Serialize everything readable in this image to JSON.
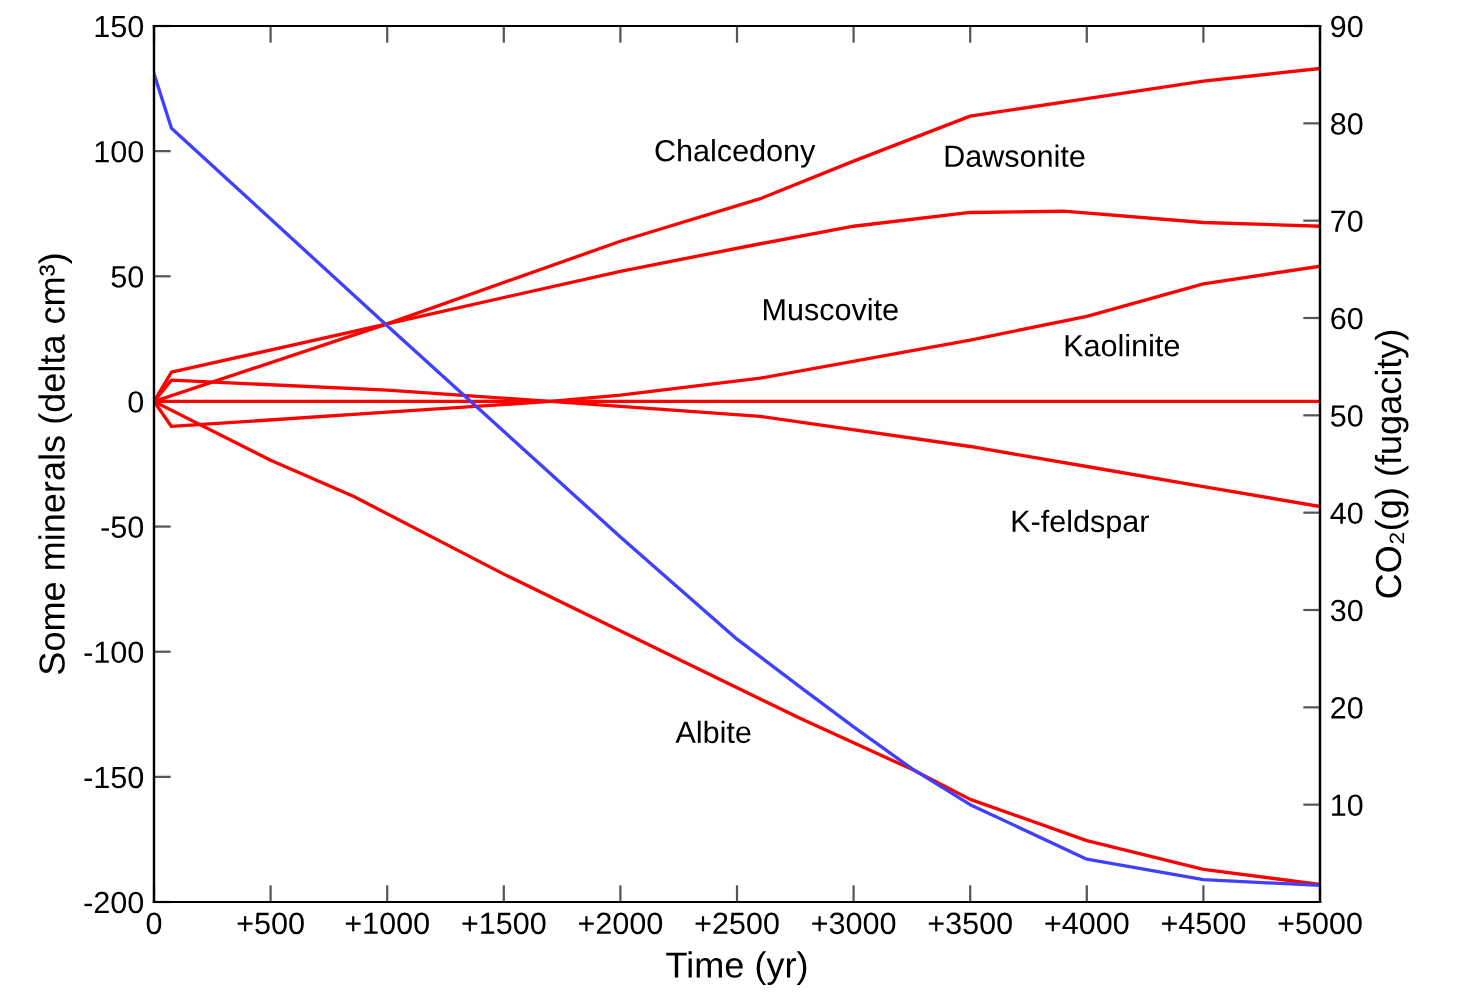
{
  "chart_data": {
    "type": "line",
    "xlabel": "Time (yr)",
    "ylabel": "Some minerals (delta cm³)",
    "y2label": "CO₂(g) (fugacity)",
    "xlim": [
      0,
      5000
    ],
    "xticks": [
      0,
      {
        "value": 500,
        "label": "+500"
      },
      {
        "value": 1000,
        "label": "+1000"
      },
      {
        "value": 1500,
        "label": "+1500"
      },
      {
        "value": 2000,
        "label": "+2000"
      },
      {
        "value": 2500,
        "label": "+2500"
      },
      {
        "value": 3000,
        "label": "+3000"
      },
      {
        "value": 3500,
        "label": "+3500"
      },
      {
        "value": 4000,
        "label": "+4000"
      },
      {
        "value": 4500,
        "label": "+4500"
      },
      {
        "value": 5000,
        "label": "+5000"
      }
    ],
    "ylim": [
      -200,
      150
    ],
    "yticks": [
      -200,
      -150,
      -100,
      -50,
      0,
      50,
      100,
      150
    ],
    "y2lim": [
      0,
      90
    ],
    "y2ticks": [
      10,
      20,
      30,
      40,
      50,
      60,
      70,
      80,
      90
    ],
    "grid": false,
    "line_style": "solid",
    "marker": "none",
    "series": [
      {
        "color": "#ff0000",
        "x": [
          0,
          1000,
          2000,
          2600,
          3000,
          3500,
          4000,
          4500,
          5000
        ],
        "values": [
          0,
          31,
          64,
          81,
          96,
          114,
          121,
          128,
          133
        ]
      },
      {
        "color": "#ff0000",
        "x": [
          0,
          75,
          1000,
          2000,
          2600,
          3000,
          3500,
          3900,
          4500,
          5000
        ],
        "values": [
          0,
          11.7,
          31,
          52,
          63,
          70,
          75.5,
          76,
          71.5,
          70
        ]
      },
      {
        "color": "#ff0000",
        "x": [
          0,
          75,
          1000,
          1700,
          2000,
          2600,
          3500,
          4000,
          4500,
          5000
        ],
        "values": [
          0,
          -10,
          -4.3,
          0,
          2.5,
          9.3,
          24.5,
          34,
          47,
          54
        ]
      },
      {
        "color": "#ff0000",
        "x": [
          0,
          5000
        ],
        "values": [
          0,
          0
        ]
      },
      {
        "color": "#ff0000",
        "x": [
          0,
          75,
          1000,
          1700,
          2600,
          3500,
          4000,
          4500,
          5000
        ],
        "values": [
          0,
          8.5,
          4.5,
          0,
          -6,
          -18,
          -26,
          -34,
          -42
        ]
      },
      {
        "color": "#ff0000",
        "x": [
          0,
          500,
          857,
          1500,
          2770,
          3250,
          3500,
          4000,
          4500,
          5000
        ],
        "values": [
          0,
          -23.5,
          -38,
          -69,
          -126.6,
          -147,
          -159,
          -175.5,
          -187,
          -193
        ]
      },
      {
        "color": "#4040ff",
        "axis": "y2",
        "x": [
          0,
          75,
          1000,
          2000,
          2500,
          2770,
          3000,
          3250,
          3500,
          4000,
          4500,
          5000
        ],
        "values": [
          85.1,
          79.5,
          59.2,
          37.5,
          27,
          22.1,
          18,
          13.7,
          10,
          4.4,
          2.3,
          1.7
        ]
      }
    ],
    "annotations": [
      {
        "text": "Chalcedony",
        "x": 2490,
        "y": 77.9
      },
      {
        "text": "Dawsonite",
        "x": 3690,
        "y": 75.7
      },
      {
        "text": "Muscovite",
        "x": 2900,
        "y": 14.4
      },
      {
        "text": "Kaolinite",
        "x": 4150,
        "y": 0
      },
      {
        "text": "K-feldspar",
        "x": 3970,
        "y": -25.5
      },
      {
        "text": "Albite",
        "x": 2400,
        "y": -109.8
      }
    ]
  }
}
